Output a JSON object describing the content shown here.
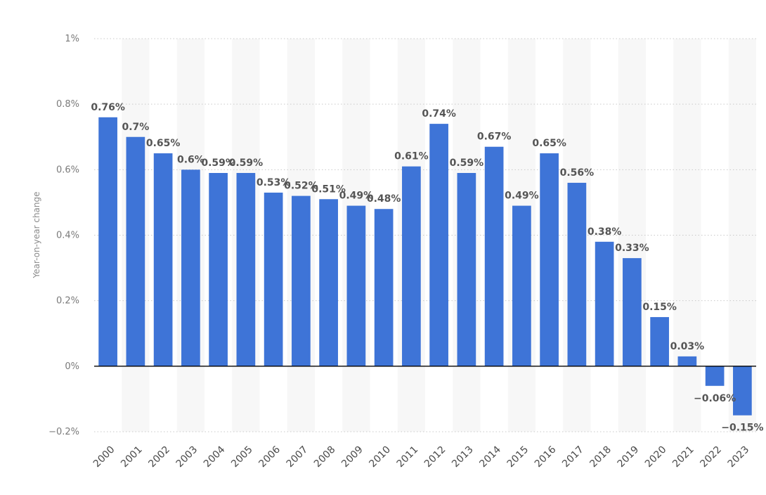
{
  "chart_data": {
    "type": "bar",
    "title": "",
    "xlabel": "",
    "ylabel": "Year-on-year change",
    "categories": [
      "2000",
      "2001",
      "2002",
      "2003",
      "2004",
      "2005",
      "2006",
      "2007",
      "2008",
      "2009",
      "2010",
      "2011",
      "2012",
      "2013",
      "2014",
      "2015",
      "2016",
      "2017",
      "2018",
      "2019",
      "2020",
      "2021",
      "2022",
      "2023"
    ],
    "values": [
      0.76,
      0.7,
      0.65,
      0.6,
      0.59,
      0.59,
      0.53,
      0.52,
      0.51,
      0.49,
      0.48,
      0.61,
      0.74,
      0.59,
      0.67,
      0.49,
      0.65,
      0.56,
      0.38,
      0.33,
      0.15,
      0.03,
      -0.06,
      -0.15
    ],
    "data_labels": [
      "0.76%",
      "0.7%",
      "0.65%",
      "0.6%",
      "0.59%",
      "0.59%",
      "0.53%",
      "0.52%",
      "0.51%",
      "0.49%",
      "0.48%",
      "0.61%",
      "0.74%",
      "0.59%",
      "0.67%",
      "0.49%",
      "0.65%",
      "0.56%",
      "0.38%",
      "0.33%",
      "0.15%",
      "0.03%",
      "−0.06%",
      "−0.15%"
    ],
    "ylim": [
      -0.2,
      1.0
    ],
    "yticks": [
      -0.2,
      0,
      0.2,
      0.4,
      0.6,
      0.8,
      1.0
    ],
    "ytick_labels": [
      "−0.2%",
      "0%",
      "0.2%",
      "0.4%",
      "0.6%",
      "0.8%",
      "1%"
    ],
    "grid": true,
    "legend": "none",
    "bar_color": "#3e74d7",
    "band_color": "#f7f7f7"
  }
}
